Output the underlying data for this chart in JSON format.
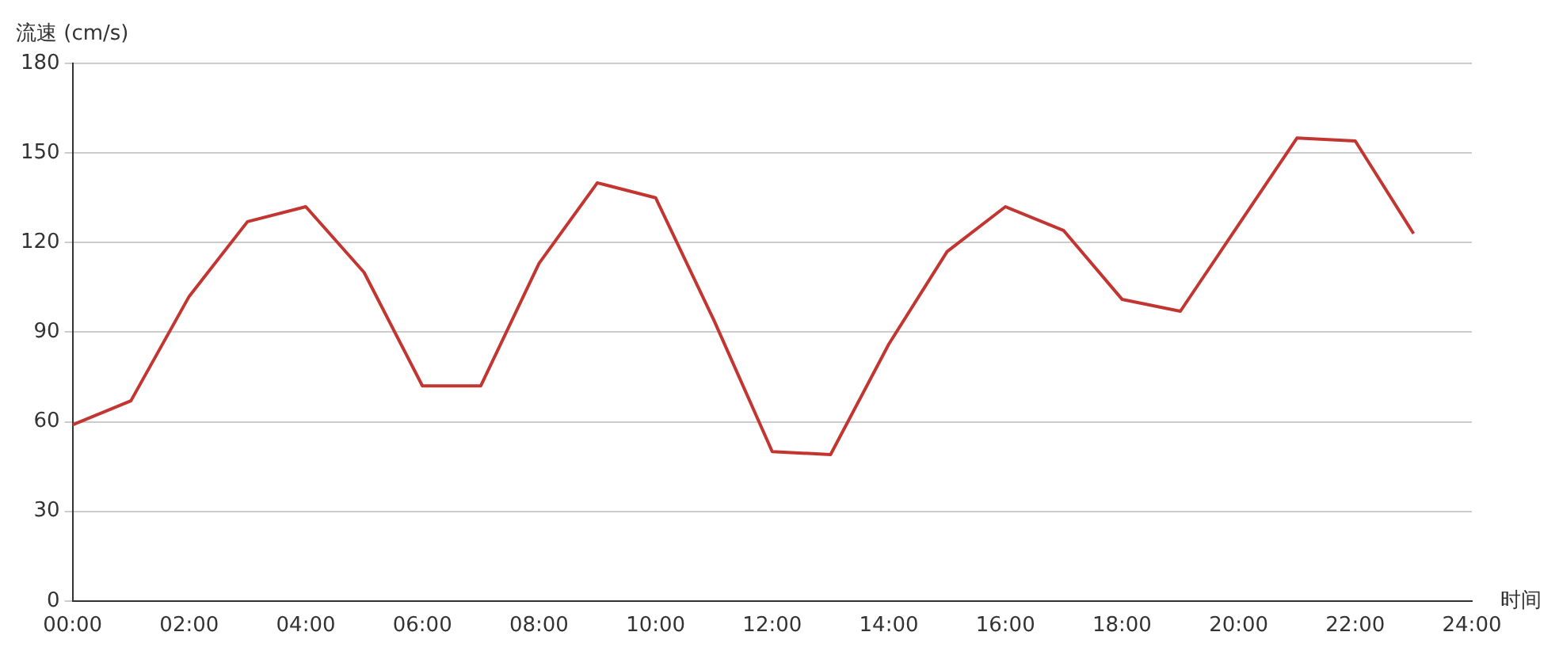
{
  "chart_data": {
    "type": "line",
    "xlabel": "时间",
    "ylabel": "流速 (cm/s)",
    "x": [
      0,
      1,
      2,
      3,
      4,
      5,
      6,
      7,
      8,
      9,
      10,
      11,
      12,
      13,
      14,
      15,
      16,
      17,
      18,
      19,
      20,
      21,
      22,
      23
    ],
    "series": [
      {
        "color": "#c23531",
        "values": [
          59,
          67,
          102,
          127,
          132,
          110,
          72,
          72,
          113,
          140,
          135,
          94,
          50,
          49,
          86,
          117,
          132,
          124,
          101,
          97,
          126,
          155,
          154,
          123
        ]
      }
    ],
    "xlim": [
      0,
      24
    ],
    "xticks": [
      {
        "value": 0,
        "label": "00:00"
      },
      {
        "value": 2,
        "label": "02:00"
      },
      {
        "value": 4,
        "label": "04:00"
      },
      {
        "value": 6,
        "label": "06:00"
      },
      {
        "value": 8,
        "label": "08:00"
      },
      {
        "value": 10,
        "label": "10:00"
      },
      {
        "value": 12,
        "label": "12:00"
      },
      {
        "value": 14,
        "label": "14:00"
      },
      {
        "value": 16,
        "label": "16:00"
      },
      {
        "value": 18,
        "label": "18:00"
      },
      {
        "value": 20,
        "label": "20:00"
      },
      {
        "value": 22,
        "label": "22:00"
      },
      {
        "value": 24,
        "label": "24:00"
      }
    ],
    "ylim": [
      0,
      180
    ],
    "yticks": [
      0,
      30,
      60,
      90,
      120,
      150,
      180
    ],
    "grid": "y",
    "legend": false,
    "marker": "none",
    "line_style": "solid"
  }
}
